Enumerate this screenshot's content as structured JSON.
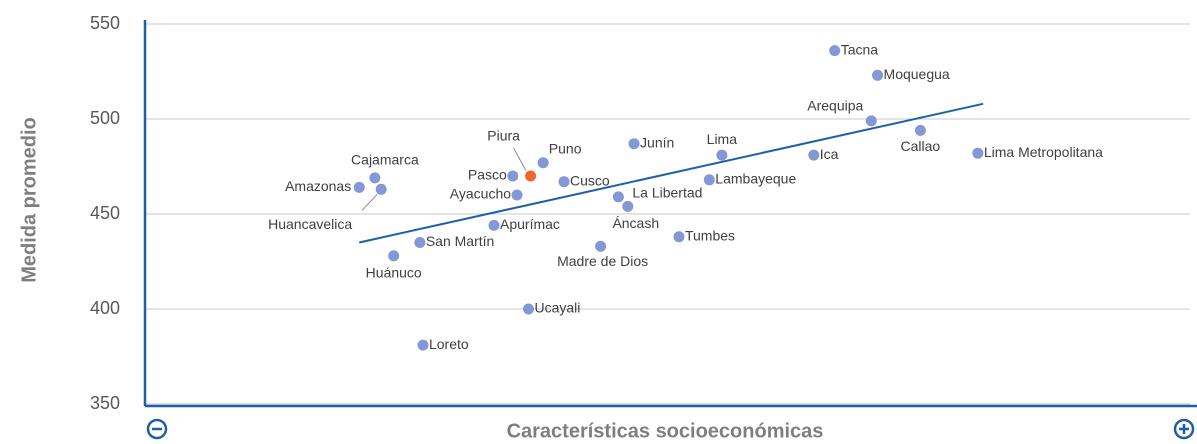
{
  "chart_data": {
    "type": "scatter",
    "x_label": "Características socioeconómicas",
    "y_label": "Medida promedio",
    "xlim": [
      0,
      100
    ],
    "ylim": [
      350,
      550
    ],
    "yticks": [
      350,
      400,
      450,
      500,
      550
    ],
    "grid": true,
    "labels": [
      "Tacna",
      "Moquegua",
      "Arequipa",
      "Callao",
      "Lima Metropolitana",
      "Ica",
      "Lima",
      "Junín",
      "Lambayeque",
      "Puno",
      "Piura",
      "Pasco",
      "Cusco",
      "Ayacucho",
      "La Libertad",
      "Áncash",
      "Tumbes",
      "Madre de Dios",
      "Apurímac",
      "San Martín",
      "Huánuco",
      "Ucayali",
      "Loreto",
      "Cajamarca",
      "Amazonas",
      "Huancavelica"
    ],
    "x": [
      66.0,
      70.1,
      69.5,
      74.2,
      79.7,
      64.0,
      55.2,
      46.8,
      54.0,
      38.1,
      36.9,
      35.2,
      40.1,
      35.6,
      45.3,
      46.2,
      51.1,
      43.6,
      33.4,
      26.3,
      23.8,
      36.7,
      26.6,
      22.0,
      20.5,
      22.6
    ],
    "values": [
      536,
      523,
      499,
      494,
      482,
      481,
      481,
      487,
      468,
      477,
      470,
      470,
      467,
      460,
      459,
      454,
      438,
      433,
      444,
      435,
      428,
      400,
      381,
      469,
      464,
      463
    ],
    "colors": [
      "#8497d6",
      "#8497d6",
      "#8497d6",
      "#8497d6",
      "#8497d6",
      "#8497d6",
      "#8497d6",
      "#8497d6",
      "#8497d6",
      "#8497d6",
      "#f0652f",
      "#8497d6",
      "#8497d6",
      "#8497d6",
      "#8497d6",
      "#8497d6",
      "#8497d6",
      "#8497d6",
      "#8497d6",
      "#8497d6",
      "#8497d6",
      "#8497d6",
      "#8497d6",
      "#8497d6",
      "#8497d6",
      "#8497d6"
    ],
    "trendline": {
      "color": "#1f5fa8",
      "x": [
        20.5,
        80.2
      ],
      "values": [
        435,
        508
      ]
    },
    "axis_color": "#1f5fa8"
  }
}
